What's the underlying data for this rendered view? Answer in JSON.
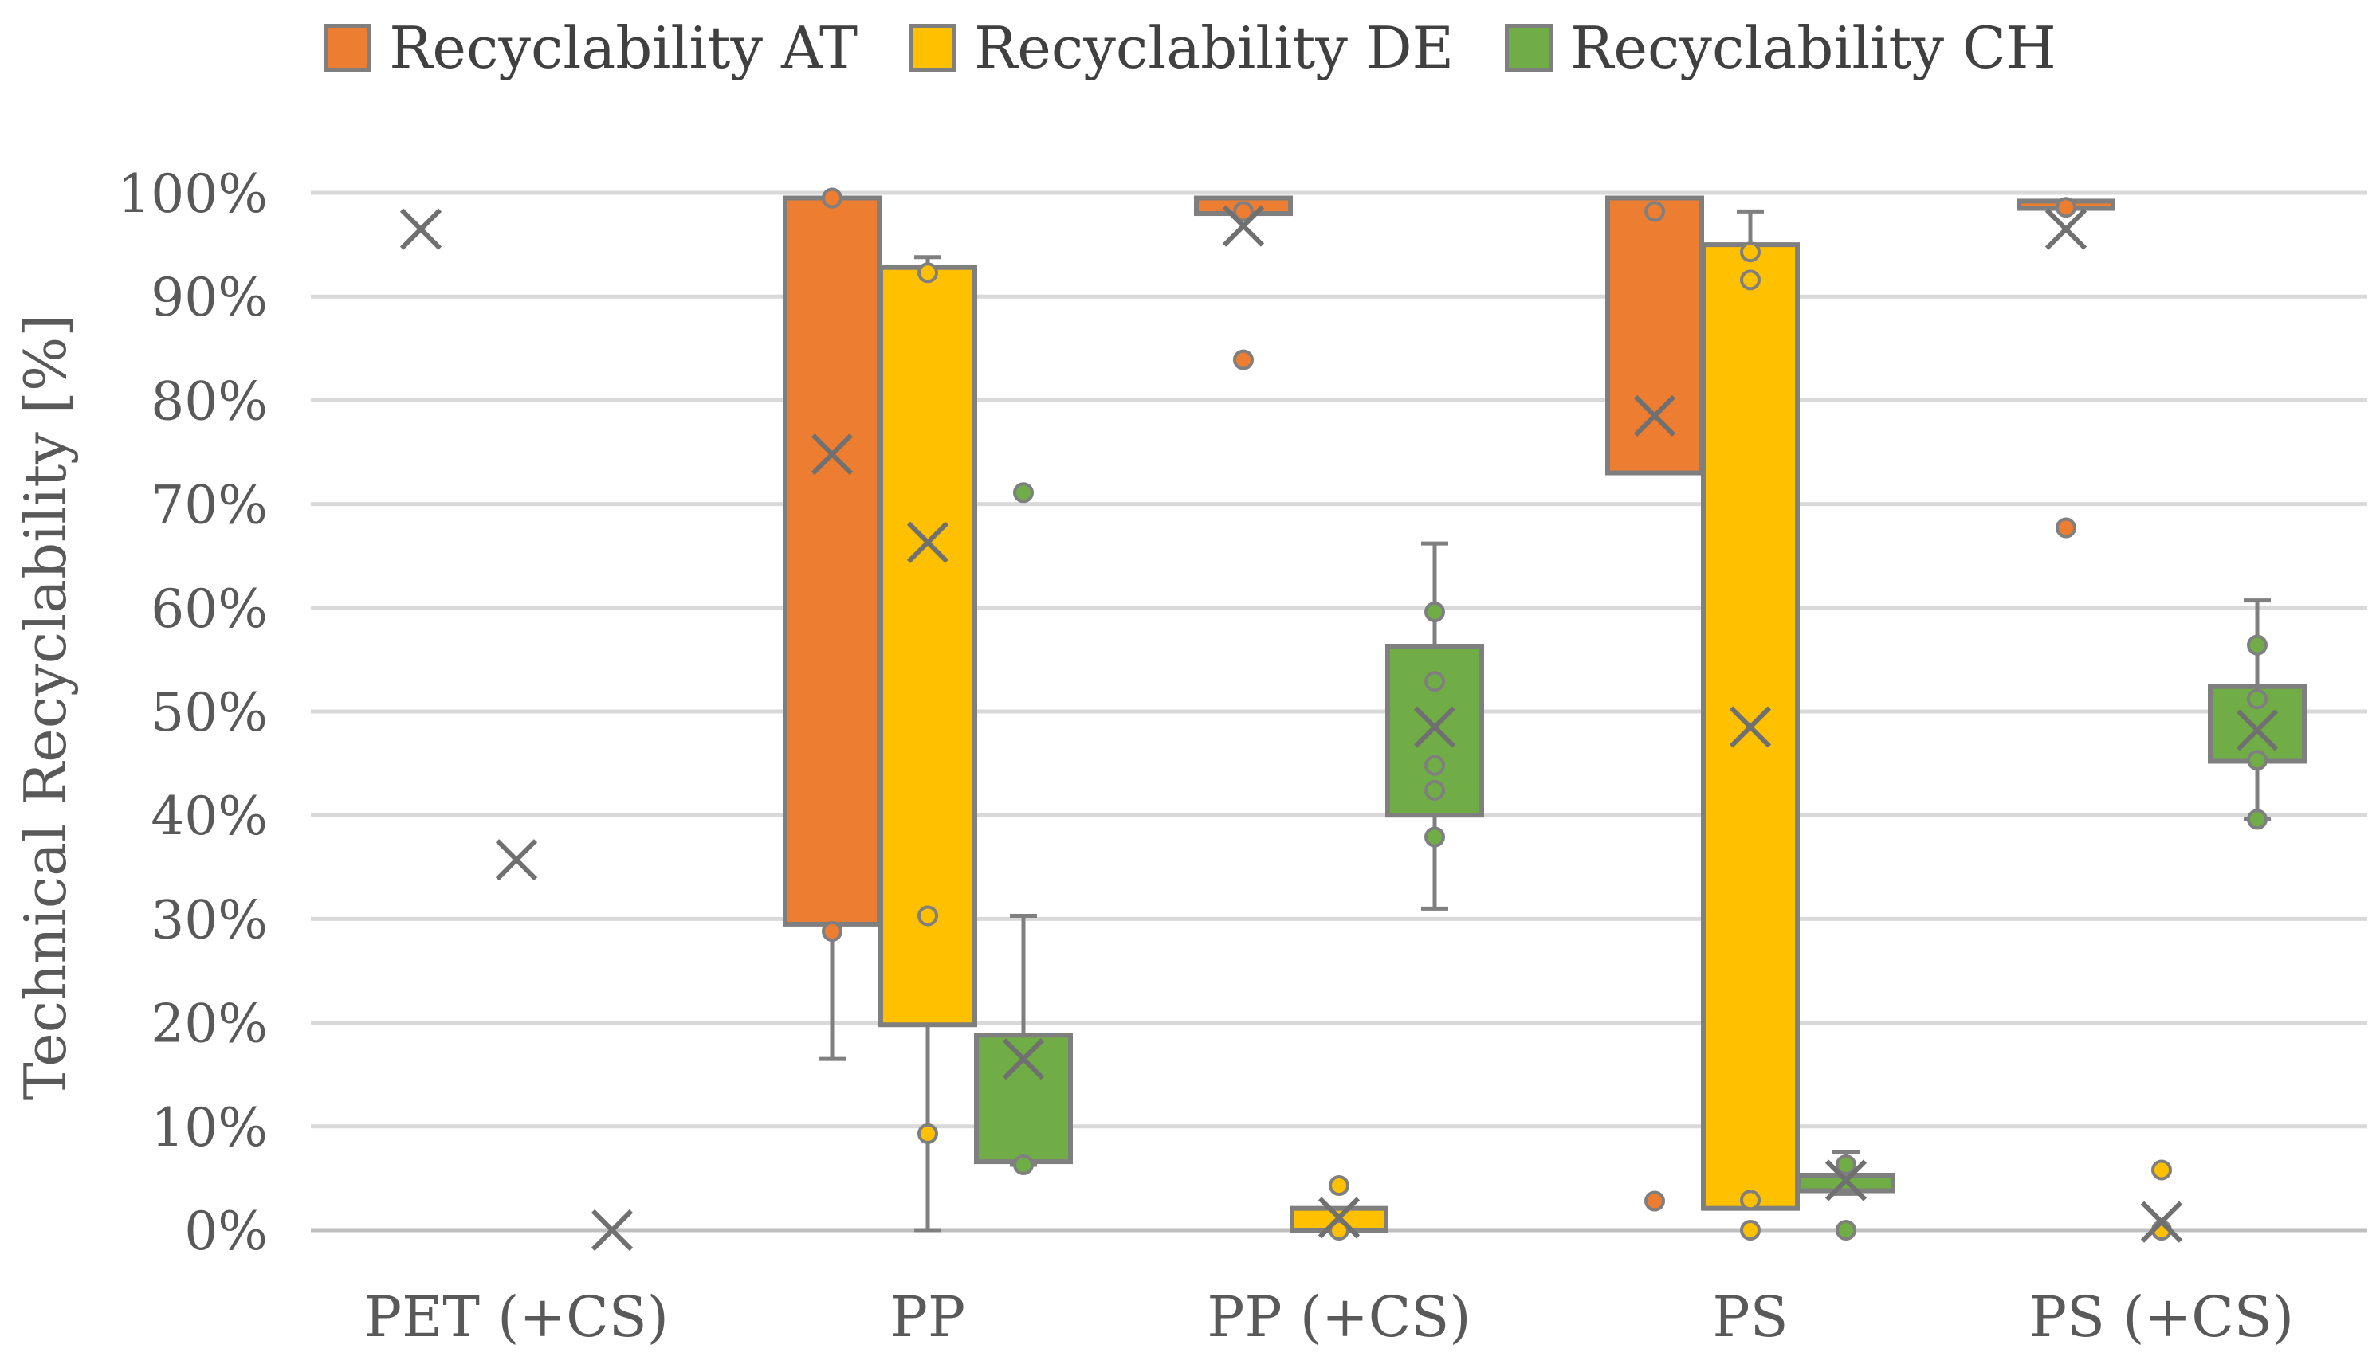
{
  "chart_data": {
    "type": "box",
    "title": "",
    "xlabel": "",
    "ylabel": "Technical Recyclability [%]",
    "ylim": [
      0,
      100
    ],
    "yticks": [
      "0%",
      "10%",
      "20%",
      "30%",
      "40%",
      "50%",
      "60%",
      "70%",
      "80%",
      "90%",
      "100%"
    ],
    "categories": [
      "PET (+CS)",
      "PP",
      "PP (+CS)",
      "PS",
      "PS (+CS)"
    ],
    "legend_position": "top-center",
    "series": [
      {
        "name": "Recyclability AT",
        "color": "#ED7D31",
        "boxes": [
          {
            "category": "PET (+CS)",
            "min": null,
            "q1": null,
            "q3": null,
            "max": null,
            "mean": 96.5,
            "points": []
          },
          {
            "category": "PP",
            "min": 16.5,
            "q1": 29.5,
            "q3": 99.5,
            "max": 99.5,
            "mean": 74.8,
            "points": [
              99.5,
              28.8
            ]
          },
          {
            "category": "PP (+CS)",
            "min": 98,
            "q1": 98,
            "q3": 99.5,
            "max": 99.5,
            "mean": 96.8,
            "points": [
              98.2,
              83.9
            ]
          },
          {
            "category": "PS",
            "min": 73,
            "q1": 73,
            "q3": 99.5,
            "max": 99.5,
            "mean": 78.5,
            "points": [
              98.2,
              2.8
            ]
          },
          {
            "category": "PS (+CS)",
            "min": 98.5,
            "q1": 98.5,
            "q3": 99.2,
            "max": 99.2,
            "mean": 96.5,
            "points": [
              98.6,
              67.7
            ]
          }
        ]
      },
      {
        "name": "Recyclability DE",
        "color": "#FFC000",
        "boxes": [
          {
            "category": "PET (+CS)",
            "min": null,
            "q1": null,
            "q3": null,
            "max": null,
            "mean": 35.7,
            "points": []
          },
          {
            "category": "PP",
            "min": 0,
            "q1": 19.8,
            "q3": 92.8,
            "max": 93.8,
            "mean": 66.3,
            "points": [
              92.3,
              30.3,
              9.3
            ]
          },
          {
            "category": "PP (+CS)",
            "min": 0,
            "q1": 0,
            "q3": 2.1,
            "max": 2.1,
            "mean": 1.2,
            "points": [
              4.3,
              0
            ]
          },
          {
            "category": "PS",
            "min": 2.1,
            "q1": 2.1,
            "q3": 95,
            "max": 98.2,
            "mean": 48.5,
            "points": [
              94.3,
              91.6,
              2.9,
              0
            ]
          },
          {
            "category": "PS (+CS)",
            "min": null,
            "q1": null,
            "q3": null,
            "max": null,
            "mean": 0.8,
            "points": [
              5.8,
              0
            ]
          }
        ]
      },
      {
        "name": "Recyclability CH",
        "color": "#70AD47",
        "boxes": [
          {
            "category": "PET (+CS)",
            "min": null,
            "q1": null,
            "q3": null,
            "max": null,
            "mean": 0,
            "points": []
          },
          {
            "category": "PP",
            "min": 6.3,
            "q1": 6.6,
            "q3": 18.8,
            "max": 30.3,
            "mean": 16.5,
            "points": [
              71.1,
              6.3
            ]
          },
          {
            "category": "PP (+CS)",
            "min": 31,
            "q1": 40,
            "q3": 56.3,
            "max": 66.2,
            "mean": 48.5,
            "points": [
              59.6,
              52.9,
              44.8,
              42.4,
              37.9
            ]
          },
          {
            "category": "PS",
            "min": 3.5,
            "q1": 3.8,
            "q3": 5.3,
            "max": 7.5,
            "mean": 4.8,
            "points": [
              6.3,
              0
            ]
          },
          {
            "category": "PS (+CS)",
            "min": 39.6,
            "q1": 45.2,
            "q3": 52.4,
            "max": 60.7,
            "mean": 48.2,
            "points": [
              56.4,
              51.2,
              45.3,
              39.6
            ]
          }
        ]
      }
    ]
  }
}
